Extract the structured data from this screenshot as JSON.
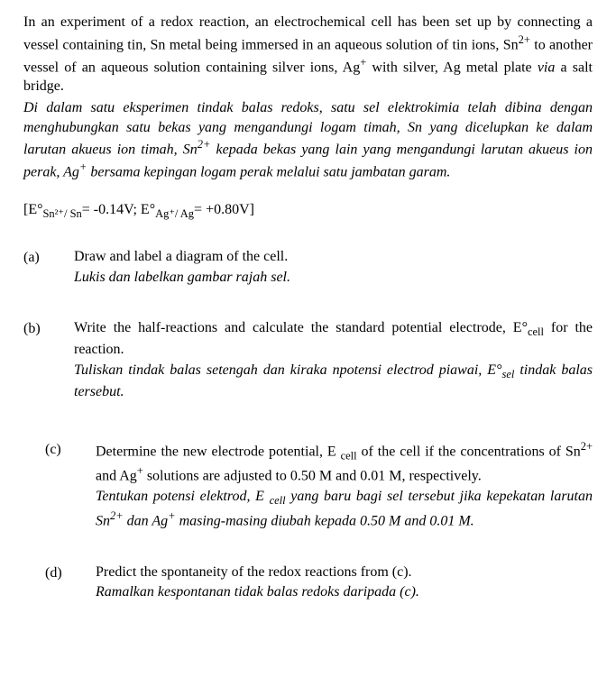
{
  "intro": {
    "en": "In an experiment of a redox reaction, an electrochemical cell has been set up by connecting a vessel containing tin, Sn metal being immersed in an aqueous solution of tin ions, Sn²⁺ to another vessel of an aqueous solution containing silver ions, Ag⁺ with silver, Ag metal plate via a salt bridge.",
    "ms": "Di dalam satu eksperimen tindak balas redoks, satu sel elektrokimia telah dibina dengan menghubungkan satu bekas yang mengandungi logam timah, Sn yang dicelupkan ke dalam larutan akueus ion timah, Sn²⁺ kepada bekas yang lain yang mengandungi larutan akueus ion perak, Ag⁺ bersama kepingan logam perak melalui satu jambatan garam."
  },
  "given": {
    "e1_label_pre": "[E°",
    "e1_sub": "Sn²⁺/ Sn",
    "e1_val": "= -0.14V;  ",
    "e2_label_pre": "E°",
    "e2_sub": "Ag⁺/ Ag",
    "e2_val": "= +0.80V]"
  },
  "parts": {
    "a": {
      "label": "(a)",
      "en": "Draw and label a diagram of the cell.",
      "ms": "Lukis dan labelkan gambar rajah sel."
    },
    "b": {
      "label": "(b)",
      "en": "Write the half-reactions and calculate the standard potential electrode, E°cell for the reaction.",
      "ms": "Tuliskan tindak balas setengah dan kiraka npotensi electrod piawai, E°sel tindak balas tersebut."
    },
    "c": {
      "label": "(c)",
      "en": "Determine the new electrode potential, E cell of the cell if the concentrations of Sn²⁺ and Ag⁺ solutions are adjusted to 0.50 M and 0.01 M, respectively.",
      "ms": "Tentukan potensi elektrod, E cell yang baru bagi sel tersebut jika kepekatan larutan Sn²⁺ dan Ag⁺ masing-masing diubah kepada 0.50 M and 0.01 M."
    },
    "d": {
      "label": "(d)",
      "en": "Predict the spontaneity of the redox reactions from (c).",
      "ms": "Ramalkan kespontanan tidak balas redoks daripada (c)."
    }
  }
}
